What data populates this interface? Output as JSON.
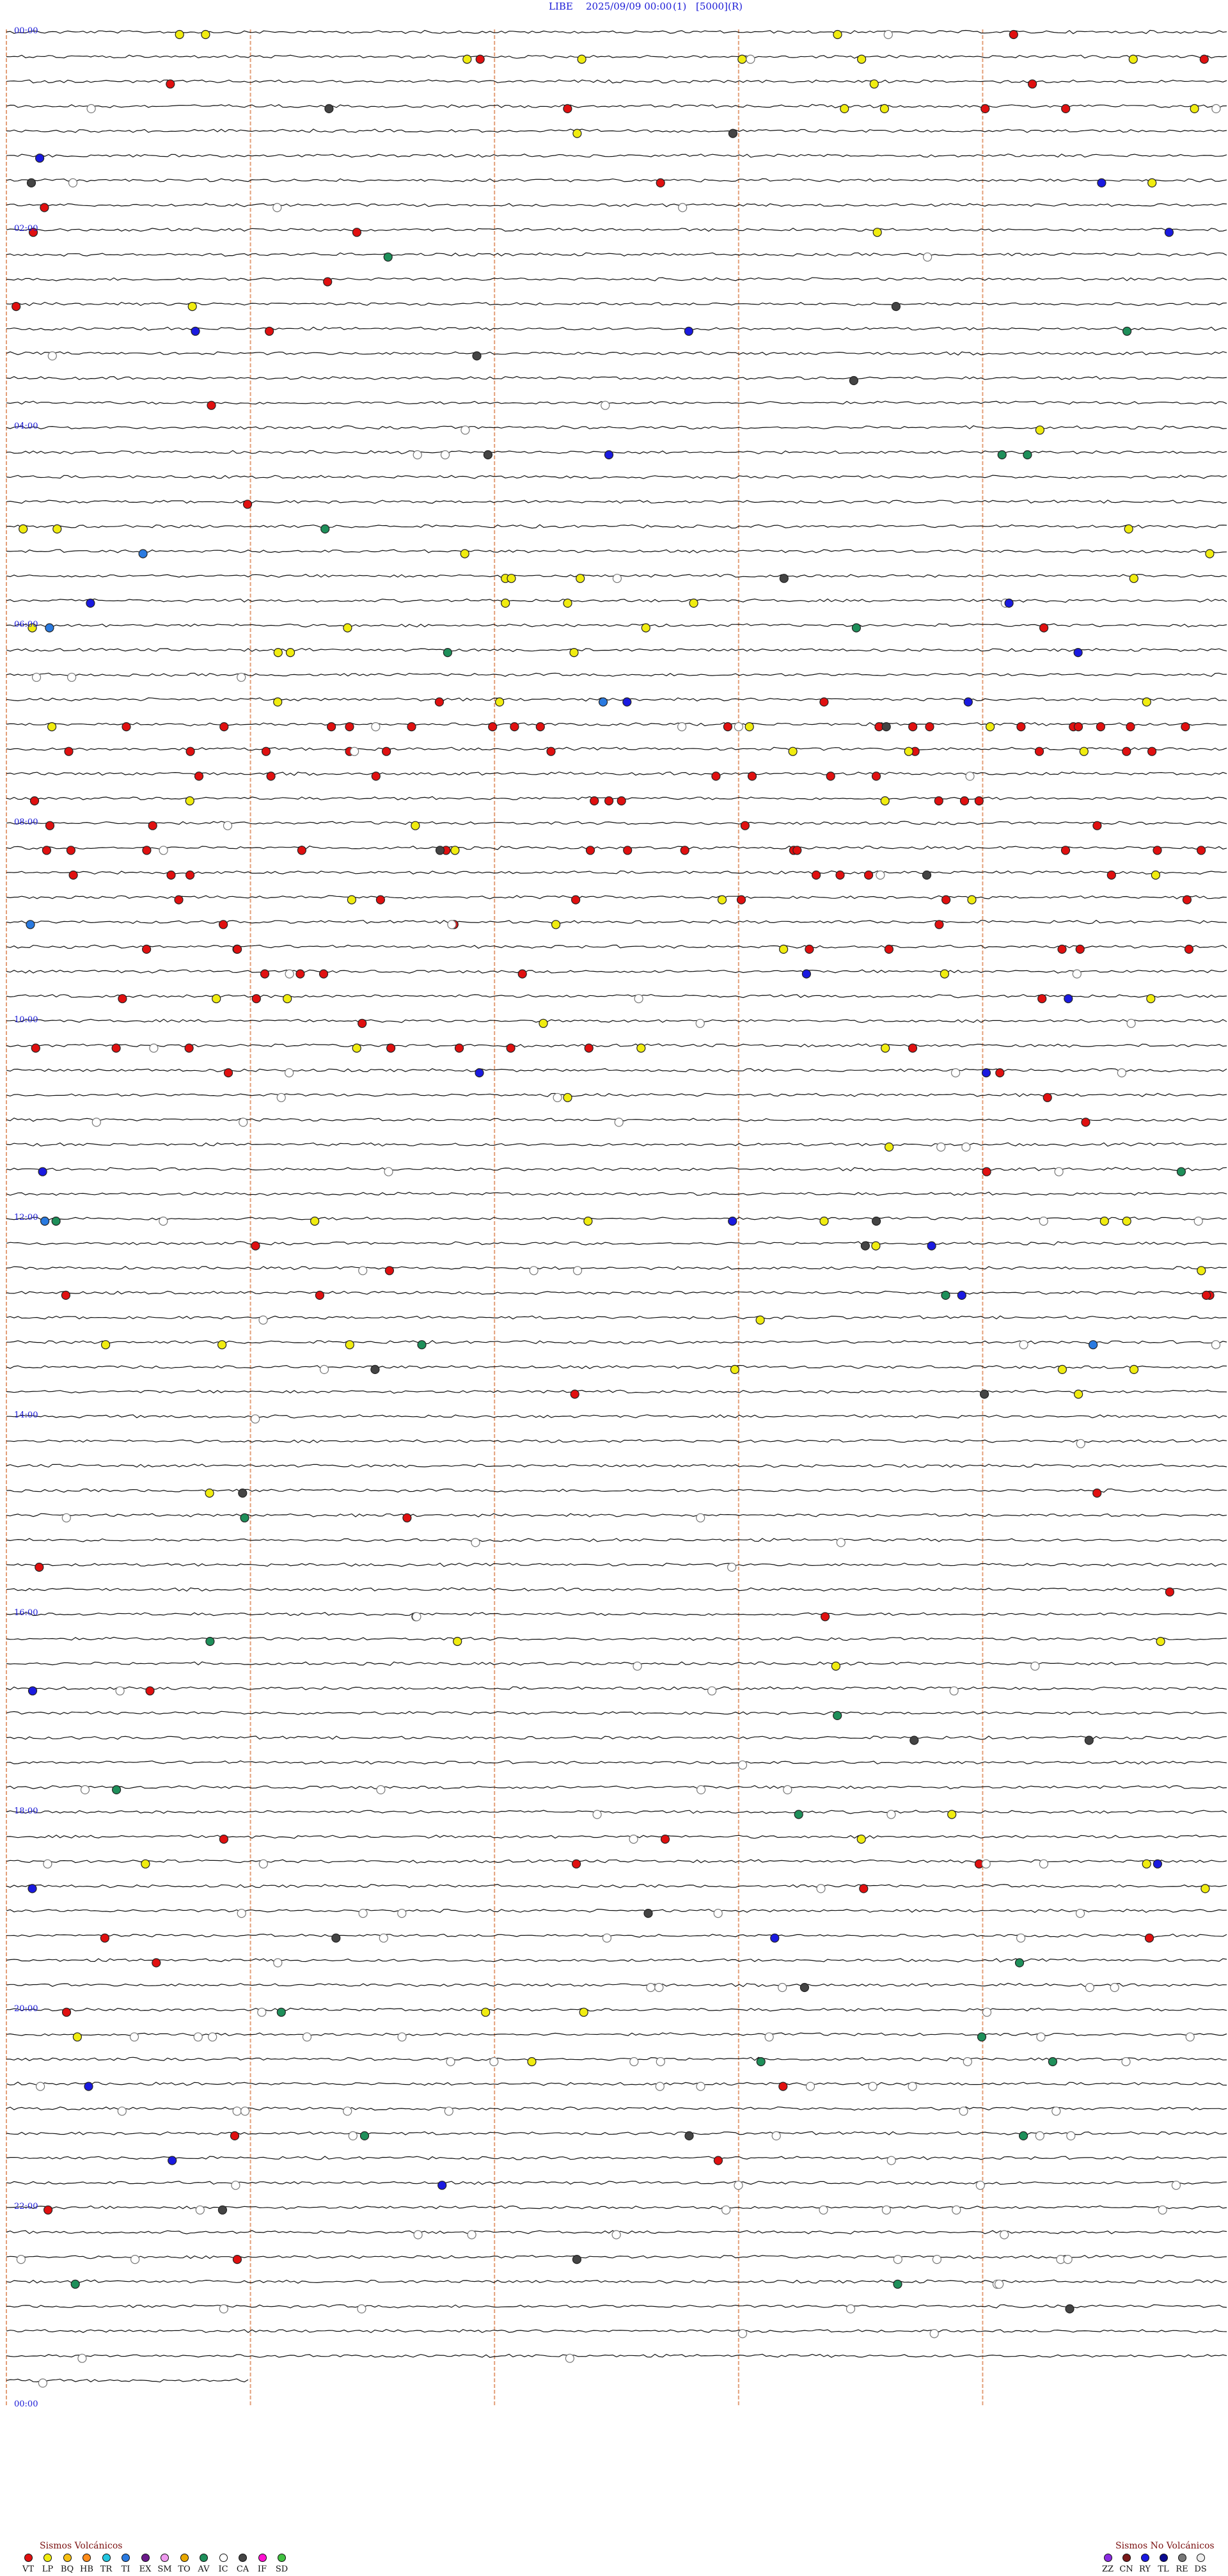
{
  "header": {
    "station": "LIBE",
    "date": "2025/09/09 00:00",
    "channel": "(1)",
    "scale": "[5000]",
    "mode": "(R)"
  },
  "chart_data": {
    "type": "scatter",
    "title": "LIBE 2025/09/09 00:00 (1) [5000] (R)",
    "xlabel": "",
    "ylabel": "",
    "x_range_minutes": [
      0,
      15
    ],
    "y_range_hours": [
      0,
      24
    ],
    "trace_interval_minutes": 15,
    "grid": true,
    "minute_marks": [
      0,
      3,
      6,
      9,
      12
    ],
    "hour_labels": [
      "00:00",
      "02:00",
      "04:00",
      "06:00",
      "08:00",
      "10:00",
      "12:00",
      "14:00",
      "16:00",
      "18:00",
      "20:00",
      "22:00",
      "00:00"
    ],
    "colors": {
      "VT": "#e01010",
      "LP": "#f0ec10",
      "BQ": "#f6c012",
      "HB": "#ff8c1a",
      "TR": "#22c6e0",
      "TI": "#2a7ae0",
      "EX": "#6a1a8a",
      "SM": "#ee99ee",
      "TO": "#e8a800",
      "AV": "#1e8f5a",
      "IC": "#ffffff",
      "CA": "#444444",
      "IF": "#ff10d0",
      "SD": "#40c040",
      "ZZ": "#8a2be2",
      "CN": "#7a1a1a",
      "RY": "#1a1ae0",
      "TL": "#0a0a90",
      "RE": "#777777",
      "DS": "#eeeeee"
    },
    "events_by_hour": [
      {
        "hour": 0,
        "counts": {
          "VT": 8,
          "LP": 12,
          "IC": 4,
          "CA": 1
        }
      },
      {
        "hour": 1,
        "counts": {
          "VT": 2,
          "LP": 2,
          "IC": 3,
          "CA": 2,
          "RY": 2
        }
      },
      {
        "hour": 2,
        "counts": {
          "VT": 4,
          "LP": 2,
          "IC": 1,
          "CA": 1,
          "RY": 1,
          "AV": 1
        }
      },
      {
        "hour": 3,
        "counts": {
          "VT": 2,
          "LP": 0,
          "IC": 2,
          "CA": 2,
          "RY": 2,
          "AV": 1
        }
      },
      {
        "hour": 4,
        "counts": {
          "VT": 1,
          "LP": 1,
          "IC": 3,
          "CA": 1,
          "RY": 1,
          "AV": 2
        }
      },
      {
        "hour": 5,
        "counts": {
          "LP": 12,
          "IC": 2,
          "CA": 1,
          "RY": 2,
          "TI": 1,
          "AV": 1
        }
      },
      {
        "hour": 6,
        "counts": {
          "VT": 3,
          "LP": 9,
          "IC": 3,
          "RY": 3,
          "TI": 2,
          "AV": 2
        }
      },
      {
        "hour": 7,
        "counts": {
          "VT": 42,
          "LP": 8,
          "IC": 5,
          "CA": 1
        }
      },
      {
        "hour": 8,
        "counts": {
          "VT": 30,
          "LP": 6,
          "IC": 3,
          "CA": 2
        }
      },
      {
        "hour": 9,
        "counts": {
          "VT": 18,
          "LP": 6,
          "IC": 4,
          "RY": 2,
          "TI": 1
        }
      },
      {
        "hour": 10,
        "counts": {
          "VT": 12,
          "LP": 5,
          "IC": 8,
          "RY": 2
        }
      },
      {
        "hour": 11,
        "counts": {
          "VT": 2,
          "LP": 1,
          "IC": 7,
          "RY": 1,
          "AV": 1
        }
      },
      {
        "hour": 12,
        "counts": {
          "VT": 6,
          "LP": 7,
          "IC": 6,
          "RY": 3,
          "TI": 1,
          "AV": 2,
          "CA": 2
        }
      },
      {
        "hour": 13,
        "counts": {
          "VT": 1,
          "LP": 8,
          "IC": 4,
          "CA": 2,
          "TI": 1,
          "AV": 1
        }
      },
      {
        "hour": 14,
        "counts": {
          "VT": 1,
          "LP": 1,
          "IC": 2,
          "CA": 1
        }
      },
      {
        "hour": 15,
        "counts": {
          "VT": 3,
          "IC": 5,
          "AV": 1
        }
      },
      {
        "hour": 16,
        "counts": {
          "VT": 2,
          "LP": 4,
          "IC": 6,
          "RY": 1,
          "AV": 1
        }
      },
      {
        "hour": 17,
        "counts": {
          "IC": 5,
          "CA": 2,
          "AV": 2
        }
      },
      {
        "hour": 18,
        "counts": {
          "VT": 5,
          "LP": 5,
          "IC": 8,
          "RY": 2,
          "AV": 1
        }
      },
      {
        "hour": 19,
        "counts": {
          "VT": 3,
          "IC": 14,
          "CA": 3,
          "AV": 1,
          "RY": 1
        }
      },
      {
        "hour": 20,
        "counts": {
          "VT": 2,
          "LP": 4,
          "IC": 22,
          "AV": 4,
          "RY": 1
        }
      },
      {
        "hour": 21,
        "counts": {
          "VT": 2,
          "IC": 16,
          "AV": 2,
          "RY": 2,
          "CA": 1
        }
      },
      {
        "hour": 22,
        "counts": {
          "VT": 2,
          "IC": 18,
          "AV": 2,
          "CA": 2
        }
      },
      {
        "hour": 23,
        "counts": {
          "IC": 8,
          "CA": 1
        }
      }
    ],
    "legend": {
      "volcanic_title": "Sismos Volcánicos",
      "volcanic": [
        "VT",
        "LP",
        "BQ",
        "HB",
        "TR",
        "TI",
        "EX",
        "SM",
        "TO",
        "AV",
        "IC",
        "CA",
        "IF",
        "SD"
      ],
      "non_volcanic_title": "Sismos No Volcánicos",
      "non_volcanic": [
        "ZZ",
        "CN",
        "RY",
        "TL",
        "RE",
        "DS"
      ]
    }
  }
}
